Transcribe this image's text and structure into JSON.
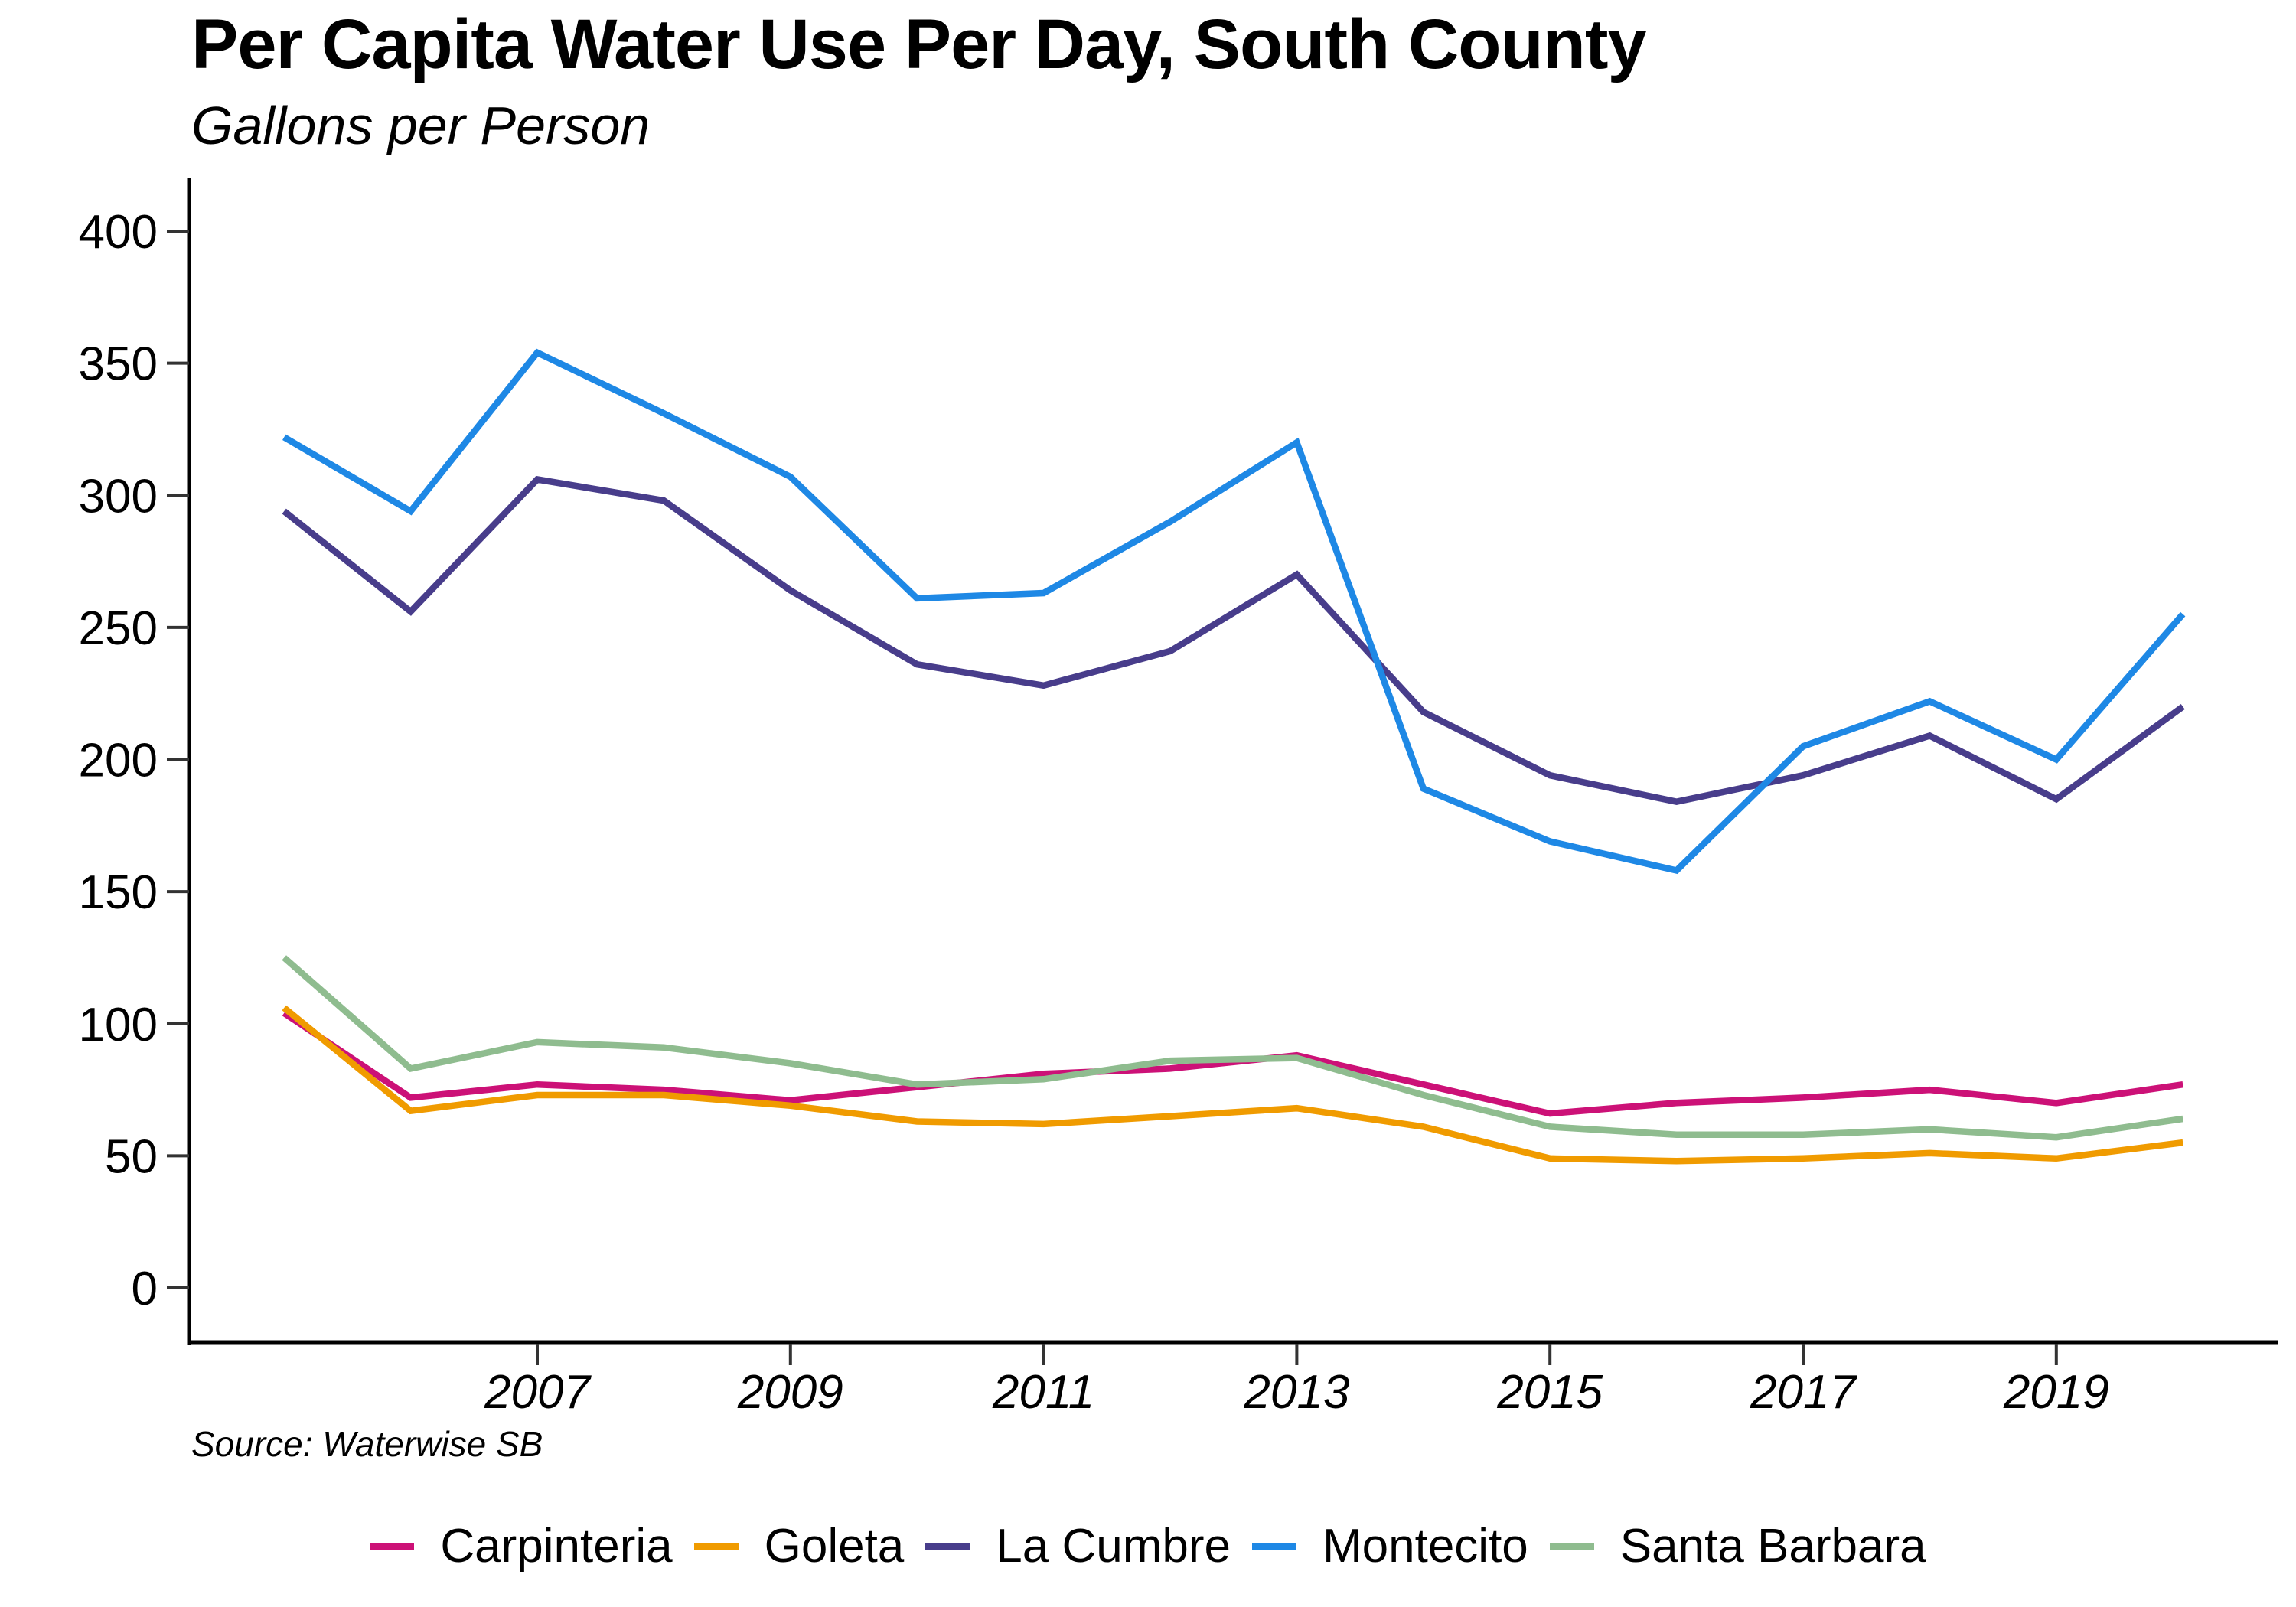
{
  "chart_data": {
    "type": "line",
    "title": "Per Capita Water Use Per Day, South County",
    "subtitle": "Gallons per Person",
    "xlabel": "",
    "ylabel": "",
    "source": "Source: Waterwise SB",
    "x": [
      2005,
      2006,
      2007,
      2008,
      2009,
      2010,
      2011,
      2012,
      2013,
      2014,
      2015,
      2016,
      2017,
      2018,
      2019,
      2020
    ],
    "xlim": [
      2003.7,
      2021.8
    ],
    "ylim": [
      -20,
      420
    ],
    "xticks": [
      2007,
      2009,
      2011,
      2013,
      2015,
      2017,
      2019
    ],
    "xtick_labels": [
      "2007",
      "2009",
      "2011",
      "2013",
      "2015",
      "2017",
      "2019"
    ],
    "yticks": [
      0,
      50,
      100,
      150,
      200,
      250,
      300,
      350,
      400
    ],
    "ytick_labels": [
      "0",
      "50",
      "100",
      "150",
      "200",
      "250",
      "300",
      "350",
      "400"
    ],
    "grid": false,
    "legend_position": "bottom",
    "series": [
      {
        "name": "Carpinteria",
        "color": "#CC1177",
        "values": [
          104,
          72,
          77,
          75,
          71,
          76,
          81,
          83,
          88,
          77,
          66,
          70,
          72,
          75,
          70,
          77
        ]
      },
      {
        "name": "Goleta",
        "color": "#F09B00",
        "values": [
          106,
          67,
          73,
          73,
          69,
          63,
          62,
          65,
          68,
          61,
          49,
          48,
          49,
          51,
          49,
          55
        ]
      },
      {
        "name": "La Cumbre",
        "color": "#483D8B",
        "values": [
          294,
          256,
          306,
          298,
          264,
          236,
          228,
          241,
          270,
          218,
          194,
          184,
          194,
          209,
          185,
          220
        ]
      },
      {
        "name": "Montecito",
        "color": "#1E88E5",
        "values": [
          322,
          294,
          354,
          331,
          307,
          261,
          263,
          290,
          320,
          189,
          169,
          158,
          205,
          222,
          200,
          255
        ]
      },
      {
        "name": "Santa Barbara",
        "color": "#8FBC8F",
        "values": [
          125,
          83,
          93,
          91,
          85,
          77,
          79,
          86,
          87,
          73,
          61,
          58,
          58,
          60,
          57,
          64
        ]
      }
    ]
  }
}
